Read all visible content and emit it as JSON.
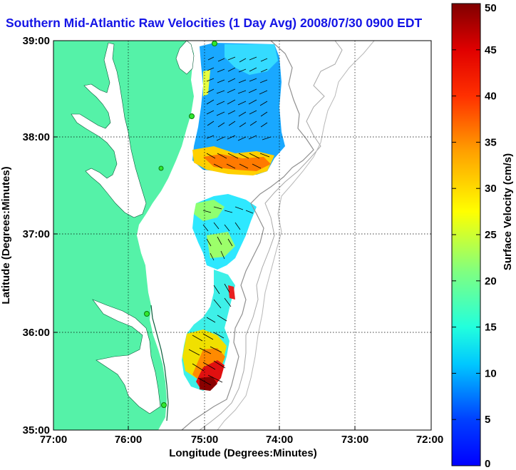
{
  "title": "Southern Mid-Atlantic Raw Velocities (1 Day Avg) 2008/07/30 0900 EDT",
  "map": {
    "xlabel": "Longitude (Degrees:Minutes)",
    "ylabel": "Latitude (Degrees:Minutes)",
    "lon_ticks": [
      "77:00",
      "76:00",
      "75:00",
      "74:00",
      "73:00",
      "72:00"
    ],
    "lat_ticks": [
      "39:00",
      "38:00",
      "37:00",
      "36:00",
      "35:00"
    ],
    "land_color": "#55f2a8",
    "grid": "dotted"
  },
  "colorbar": {
    "label": "Surface Velocity (cm/s)",
    "min": 0,
    "max": 50,
    "ticks": [
      "0",
      "5",
      "10",
      "15",
      "20",
      "25",
      "30",
      "35",
      "40",
      "45",
      "50"
    ]
  }
}
